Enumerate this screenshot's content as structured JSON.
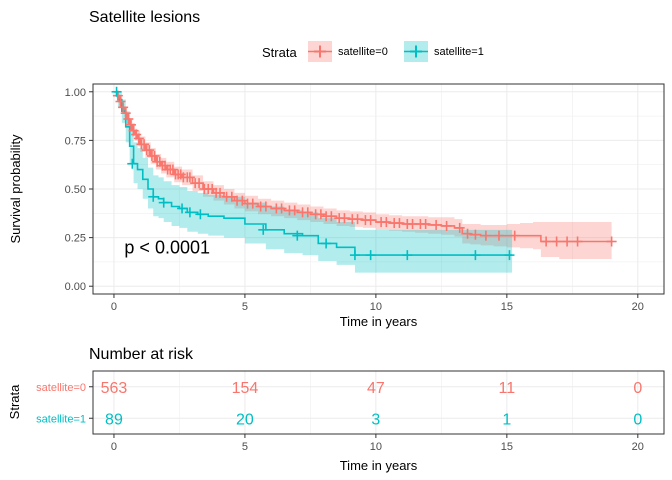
{
  "chart_data": [
    {
      "type": "line",
      "title": "Satellite lesions",
      "xlabel": "Time in years",
      "ylabel": "Survival probability",
      "xlim": [
        -0.8,
        21.0
      ],
      "ylim": [
        -0.04,
        1.04
      ],
      "x_ticks": [
        0,
        5,
        10,
        15,
        20
      ],
      "y_ticks": [
        0.0,
        0.25,
        0.5,
        0.75,
        1.0
      ],
      "y_tick_labels": [
        "0.00",
        "0.25",
        "0.50",
        "0.75",
        "1.00"
      ],
      "grid": true,
      "legend": {
        "title": "Strata",
        "position": "top",
        "entries": [
          "satellite=0",
          "satellite=1"
        ]
      },
      "annotation": "p < 0.0001",
      "annotation_pos": [
        0.4,
        0.2
      ],
      "series": [
        {
          "name": "satellite=0",
          "color": "#F8766D",
          "step_x": [
            0,
            0.1,
            0.2,
            0.3,
            0.4,
            0.5,
            0.6,
            0.7,
            0.8,
            0.9,
            1.0,
            1.2,
            1.4,
            1.6,
            1.8,
            2.0,
            2.3,
            2.6,
            3.0,
            3.4,
            3.8,
            4.2,
            4.6,
            5.0,
            5.5,
            6.0,
            6.5,
            7.0,
            7.5,
            8.0,
            8.5,
            9.0,
            9.5,
            10.0,
            10.5,
            11.0,
            11.5,
            12.0,
            12.5,
            13.0,
            13.3,
            13.6,
            14.0,
            14.5,
            15.0,
            15.5,
            16.0,
            16.3,
            17.0,
            19.0
          ],
          "step_y": [
            1.0,
            0.98,
            0.95,
            0.92,
            0.89,
            0.86,
            0.83,
            0.8,
            0.78,
            0.76,
            0.73,
            0.7,
            0.67,
            0.64,
            0.62,
            0.6,
            0.575,
            0.56,
            0.53,
            0.5,
            0.48,
            0.46,
            0.44,
            0.425,
            0.41,
            0.4,
            0.39,
            0.38,
            0.37,
            0.36,
            0.35,
            0.345,
            0.34,
            0.33,
            0.325,
            0.32,
            0.32,
            0.315,
            0.31,
            0.3,
            0.27,
            0.265,
            0.26,
            0.26,
            0.26,
            0.26,
            0.26,
            0.23,
            0.23,
            0.23
          ],
          "ci_lower": [
            1.0,
            0.97,
            0.93,
            0.9,
            0.87,
            0.83,
            0.8,
            0.77,
            0.75,
            0.72,
            0.69,
            0.66,
            0.63,
            0.6,
            0.58,
            0.56,
            0.535,
            0.52,
            0.49,
            0.46,
            0.44,
            0.42,
            0.4,
            0.385,
            0.37,
            0.36,
            0.35,
            0.34,
            0.33,
            0.32,
            0.31,
            0.305,
            0.3,
            0.29,
            0.285,
            0.28,
            0.275,
            0.27,
            0.265,
            0.255,
            0.22,
            0.215,
            0.21,
            0.205,
            0.2,
            0.195,
            0.19,
            0.15,
            0.14,
            0.14
          ],
          "ci_upper": [
            1.0,
            0.99,
            0.97,
            0.94,
            0.92,
            0.89,
            0.86,
            0.84,
            0.81,
            0.8,
            0.77,
            0.74,
            0.71,
            0.68,
            0.66,
            0.64,
            0.615,
            0.6,
            0.57,
            0.54,
            0.52,
            0.5,
            0.48,
            0.465,
            0.45,
            0.44,
            0.43,
            0.42,
            0.41,
            0.4,
            0.39,
            0.385,
            0.38,
            0.37,
            0.365,
            0.36,
            0.36,
            0.355,
            0.355,
            0.345,
            0.32,
            0.32,
            0.315,
            0.315,
            0.32,
            0.325,
            0.33,
            0.33,
            0.33,
            0.33
          ],
          "censor_x": [
            0.15,
            0.25,
            0.35,
            0.45,
            0.55,
            0.65,
            0.75,
            0.85,
            0.95,
            1.05,
            1.15,
            1.25,
            1.35,
            1.45,
            1.55,
            1.65,
            1.75,
            1.85,
            1.95,
            2.05,
            2.15,
            2.25,
            2.35,
            2.45,
            2.55,
            2.65,
            2.8,
            2.9,
            3.1,
            3.25,
            3.45,
            3.6,
            3.75,
            3.9,
            4.05,
            4.3,
            4.5,
            4.7,
            4.9,
            5.1,
            5.3,
            5.6,
            5.8,
            6.2,
            6.4,
            6.7,
            6.9,
            7.2,
            7.4,
            7.7,
            7.9,
            8.1,
            8.3,
            8.6,
            8.8,
            9.1,
            9.3,
            9.6,
            9.8,
            10.2,
            10.4,
            10.7,
            10.9,
            11.2,
            11.4,
            11.7,
            11.9,
            12.3,
            12.7,
            13.2,
            13.5,
            13.8,
            14.2,
            14.7,
            15.3,
            16.5,
            16.9,
            17.3,
            17.7,
            19.0
          ],
          "censor_y": [
            0.98,
            0.95,
            0.92,
            0.89,
            0.86,
            0.83,
            0.8,
            0.78,
            0.76,
            0.73,
            0.73,
            0.7,
            0.7,
            0.67,
            0.67,
            0.64,
            0.64,
            0.62,
            0.62,
            0.6,
            0.6,
            0.6,
            0.575,
            0.575,
            0.575,
            0.56,
            0.56,
            0.56,
            0.53,
            0.53,
            0.5,
            0.5,
            0.5,
            0.48,
            0.48,
            0.46,
            0.46,
            0.44,
            0.44,
            0.425,
            0.425,
            0.41,
            0.41,
            0.4,
            0.4,
            0.39,
            0.39,
            0.38,
            0.38,
            0.37,
            0.37,
            0.36,
            0.36,
            0.35,
            0.35,
            0.345,
            0.345,
            0.34,
            0.34,
            0.33,
            0.33,
            0.325,
            0.325,
            0.32,
            0.32,
            0.32,
            0.32,
            0.315,
            0.31,
            0.3,
            0.27,
            0.265,
            0.26,
            0.26,
            0.26,
            0.23,
            0.23,
            0.23,
            0.23,
            0.23
          ]
        },
        {
          "name": "satellite=1",
          "color": "#00BFC4",
          "step_x": [
            0,
            0.15,
            0.3,
            0.45,
            0.6,
            0.75,
            0.9,
            1.1,
            1.3,
            1.5,
            1.7,
            1.9,
            2.2,
            2.5,
            2.8,
            3.2,
            3.6,
            4.2,
            5.0,
            5.8,
            6.5,
            7.2,
            7.8,
            8.5,
            9.2,
            15.2
          ],
          "step_y": [
            1.0,
            0.96,
            0.9,
            0.82,
            0.72,
            0.63,
            0.6,
            0.55,
            0.5,
            0.46,
            0.45,
            0.43,
            0.41,
            0.4,
            0.38,
            0.37,
            0.36,
            0.35,
            0.32,
            0.29,
            0.27,
            0.26,
            0.22,
            0.2,
            0.16,
            0.16
          ],
          "ci_lower": [
            1.0,
            0.92,
            0.84,
            0.74,
            0.63,
            0.53,
            0.5,
            0.45,
            0.4,
            0.36,
            0.35,
            0.33,
            0.31,
            0.3,
            0.28,
            0.27,
            0.26,
            0.25,
            0.22,
            0.19,
            0.17,
            0.16,
            0.13,
            0.11,
            0.07,
            0.07
          ],
          "ci_upper": [
            1.0,
            1.0,
            0.96,
            0.9,
            0.82,
            0.74,
            0.71,
            0.66,
            0.61,
            0.57,
            0.56,
            0.54,
            0.52,
            0.51,
            0.49,
            0.48,
            0.47,
            0.46,
            0.43,
            0.41,
            0.39,
            0.38,
            0.35,
            0.33,
            0.29,
            0.29
          ],
          "censor_x": [
            0.1,
            0.7,
            1.5,
            1.9,
            2.6,
            2.9,
            3.3,
            5.7,
            7.0,
            8.1,
            9.2,
            9.8,
            11.2,
            13.8,
            15.1
          ],
          "censor_y": [
            1.0,
            0.63,
            0.46,
            0.43,
            0.4,
            0.38,
            0.37,
            0.29,
            0.26,
            0.22,
            0.16,
            0.16,
            0.16,
            0.16,
            0.16
          ]
        }
      ]
    },
    {
      "type": "table",
      "title": "Number at risk",
      "xlabel": "Time in years",
      "ylabel": "Strata",
      "xlim": [
        -0.8,
        21.0
      ],
      "x_ticks": [
        0,
        5,
        10,
        15,
        20
      ],
      "rows": [
        {
          "name": "satellite=0",
          "color": "#F8766D",
          "x": [
            0,
            5,
            10,
            15,
            20
          ],
          "values": [
            "563",
            "154",
            "47",
            "11",
            "0"
          ]
        },
        {
          "name": "satellite=1",
          "color": "#00BFC4",
          "x": [
            0,
            5,
            10,
            15,
            20
          ],
          "values": [
            "89",
            "20",
            "3",
            "1",
            "0"
          ]
        }
      ]
    }
  ]
}
